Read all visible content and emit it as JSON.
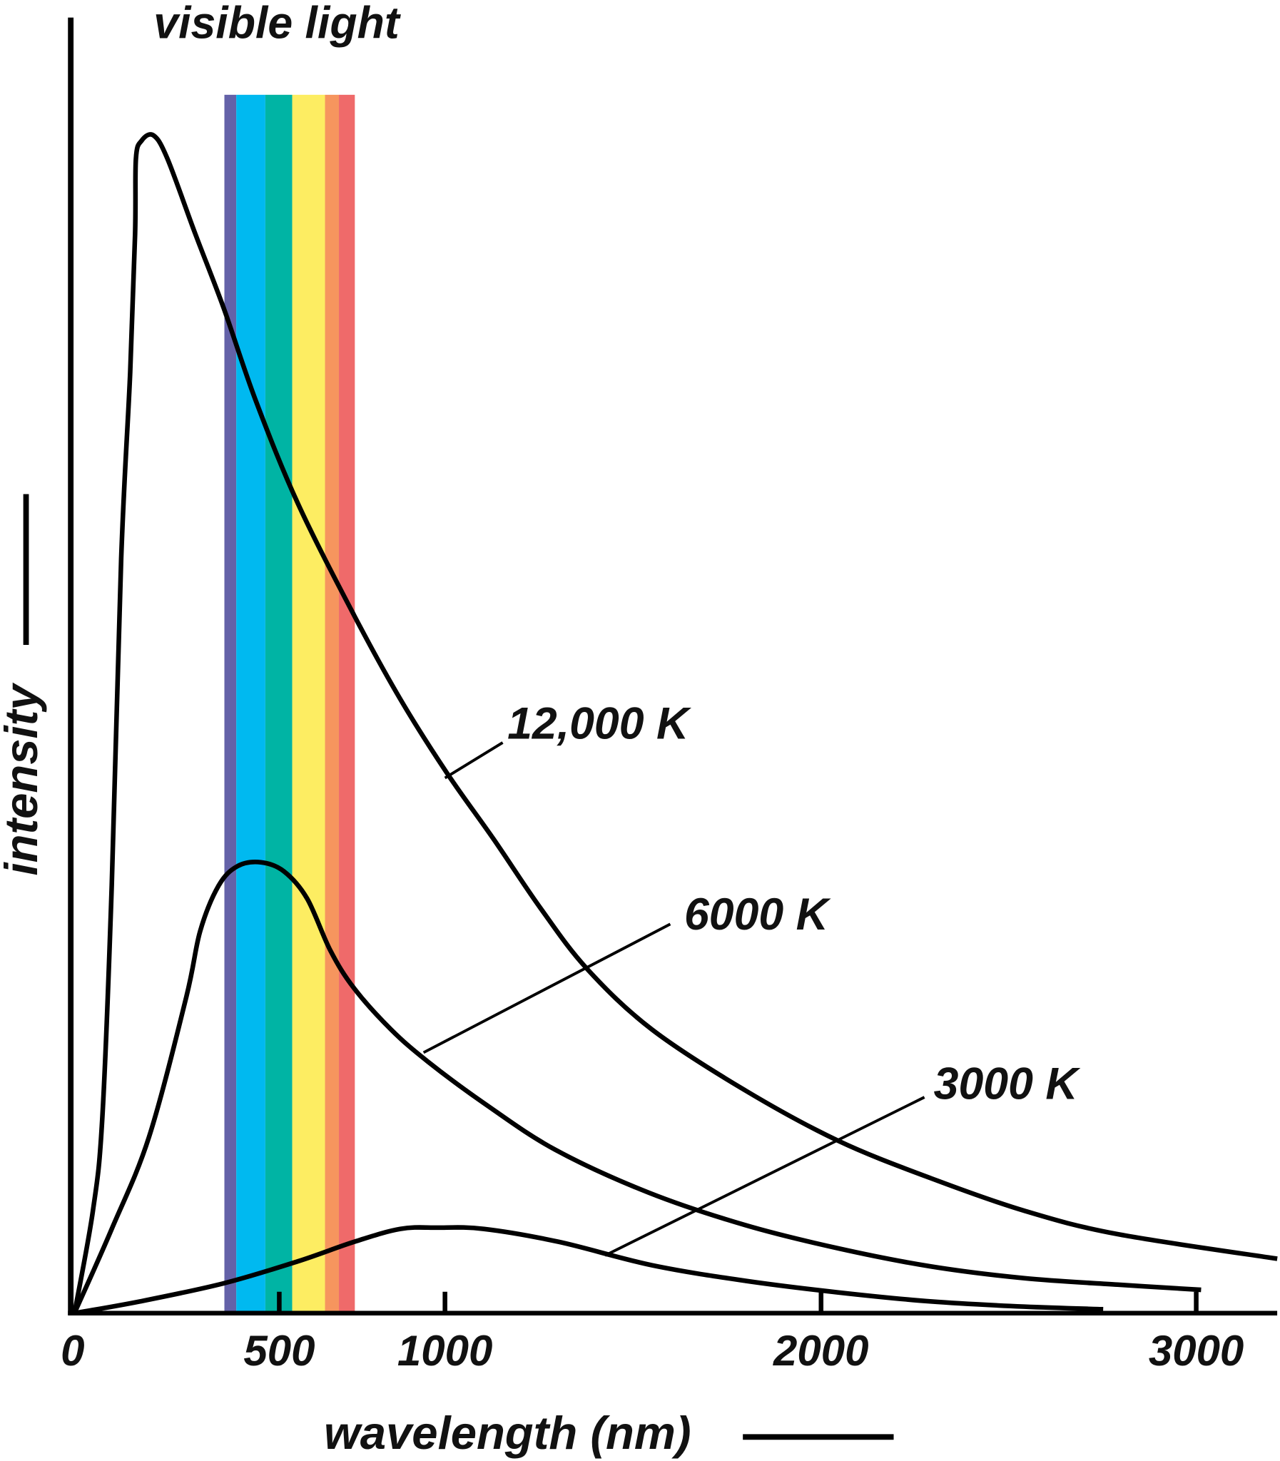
{
  "chart_data": {
    "type": "line",
    "title": "",
    "xlabel": "wavelength (nm)",
    "ylabel": "intensity",
    "xlim": [
      0,
      3200
    ],
    "ylim": [
      0,
      100
    ],
    "grid": false,
    "x_ticks": [
      {
        "value": 0,
        "label": "0"
      },
      {
        "value": 500,
        "label": "500"
      },
      {
        "value": 1000,
        "label": "1000"
      },
      {
        "value": 2000,
        "label": "2000"
      },
      {
        "value": 3000,
        "label": "3000"
      }
    ],
    "visible_band": {
      "label": "visible light",
      "stripes": [
        {
          "from": 366,
          "to": 395,
          "color": "#6462a8"
        },
        {
          "from": 395,
          "to": 466,
          "color": "#00b9f0"
        },
        {
          "from": 466,
          "to": 539,
          "color": "#00b4a4"
        },
        {
          "from": 539,
          "to": 638,
          "color": "#fded62"
        },
        {
          "from": 638,
          "to": 680,
          "color": "#f6955e"
        },
        {
          "from": 680,
          "to": 728,
          "color": "#ef6a6a"
        }
      ]
    },
    "series": [
      {
        "name": "12,000 K",
        "x": [
          0,
          45,
          68,
          91,
          114,
          136,
          148,
          150,
          164,
          193,
          227,
          295,
          364,
          443,
          556,
          725,
          865,
          1005,
          1129,
          1253,
          1377,
          1550,
          1798,
          2046,
          2294,
          2542,
          2790,
          3216
        ],
        "y": [
          0,
          7.9,
          15.1,
          33,
          58.2,
          72.6,
          83.3,
          89.1,
          90.5,
          90.9,
          89.1,
          83.3,
          77.6,
          70.4,
          62.5,
          53.9,
          47.4,
          41.7,
          36.6,
          31.3,
          26.6,
          21.9,
          17.2,
          13.3,
          10.4,
          7.9,
          6.1,
          4.2
        ]
      },
      {
        "name": "6000 K",
        "x": [
          0,
          91,
          182,
          273,
          307,
          352,
          398,
          455,
          514,
          584,
          654,
          725,
          837,
          949,
          1104,
          1294,
          1542,
          1798,
          2046,
          2294,
          2542,
          2790,
          3013
        ],
        "y": [
          0,
          6.5,
          13.6,
          24.4,
          29.5,
          33.0,
          34.5,
          34.8,
          34.1,
          32.0,
          28.0,
          25.1,
          21.9,
          19.4,
          16.2,
          12.6,
          9.3,
          6.8,
          5.0,
          3.6,
          2.7,
          2.2,
          1.8
        ]
      },
      {
        "name": "3000 K",
        "x": [
          0,
          159,
          364,
          556,
          725,
          865,
          977,
          1104,
          1303,
          1550,
          1798,
          2046,
          2294,
          2542,
          2752
        ],
        "y": [
          0,
          0.9,
          2.3,
          4.0,
          5.5,
          6.5,
          6.6,
          6.5,
          5.5,
          3.7,
          2.5,
          1.6,
          0.9,
          0.5,
          0.3
        ]
      }
    ]
  }
}
